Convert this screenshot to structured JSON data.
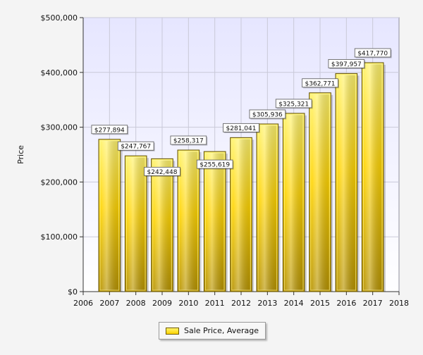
{
  "chart_data": {
    "type": "bar",
    "title": "",
    "xlabel": "",
    "ylabel": "Price",
    "categories": [
      "2007",
      "2008",
      "2009",
      "2010",
      "2011",
      "2012",
      "2013",
      "2014",
      "2015",
      "2016",
      "2017"
    ],
    "x_ticks": [
      "2006",
      "2007",
      "2008",
      "2009",
      "2010",
      "2011",
      "2012",
      "2013",
      "2014",
      "2015",
      "2016",
      "2017",
      "2018"
    ],
    "xlim": [
      2006,
      2018
    ],
    "ylim": [
      0,
      500000
    ],
    "y_ticks": [
      {
        "value": 0,
        "label": "$0"
      },
      {
        "value": 100000,
        "label": "$100,000"
      },
      {
        "value": 200000,
        "label": "$200,000"
      },
      {
        "value": 300000,
        "label": "$300,000"
      },
      {
        "value": 400000,
        "label": "$400,000"
      },
      {
        "value": 500000,
        "label": "$500,000"
      }
    ],
    "series": [
      {
        "name": "Sale Price, Average",
        "values": [
          277894,
          247767,
          242448,
          258317,
          255619,
          281041,
          305936,
          325321,
          362771,
          397957,
          417770
        ],
        "labels": [
          "$277,894",
          "$247,767",
          "$242,448",
          "$258,317",
          "$255,619",
          "$281,041",
          "$305,936",
          "$325,321",
          "$362,771",
          "$397,957",
          "$417,770"
        ]
      }
    ],
    "grid": true,
    "legend_position": "bottom-center",
    "colors": {
      "bar_top": "#fff36c",
      "bar_mid": "#ffd400",
      "bar_bottom": "#b89400",
      "bar_border": "#5e4c00",
      "plot_bg_top": "#e6e6ff",
      "plot_bg_bottom": "#ffffff",
      "grid": "#c9c9d8",
      "axis": "#333333"
    }
  }
}
